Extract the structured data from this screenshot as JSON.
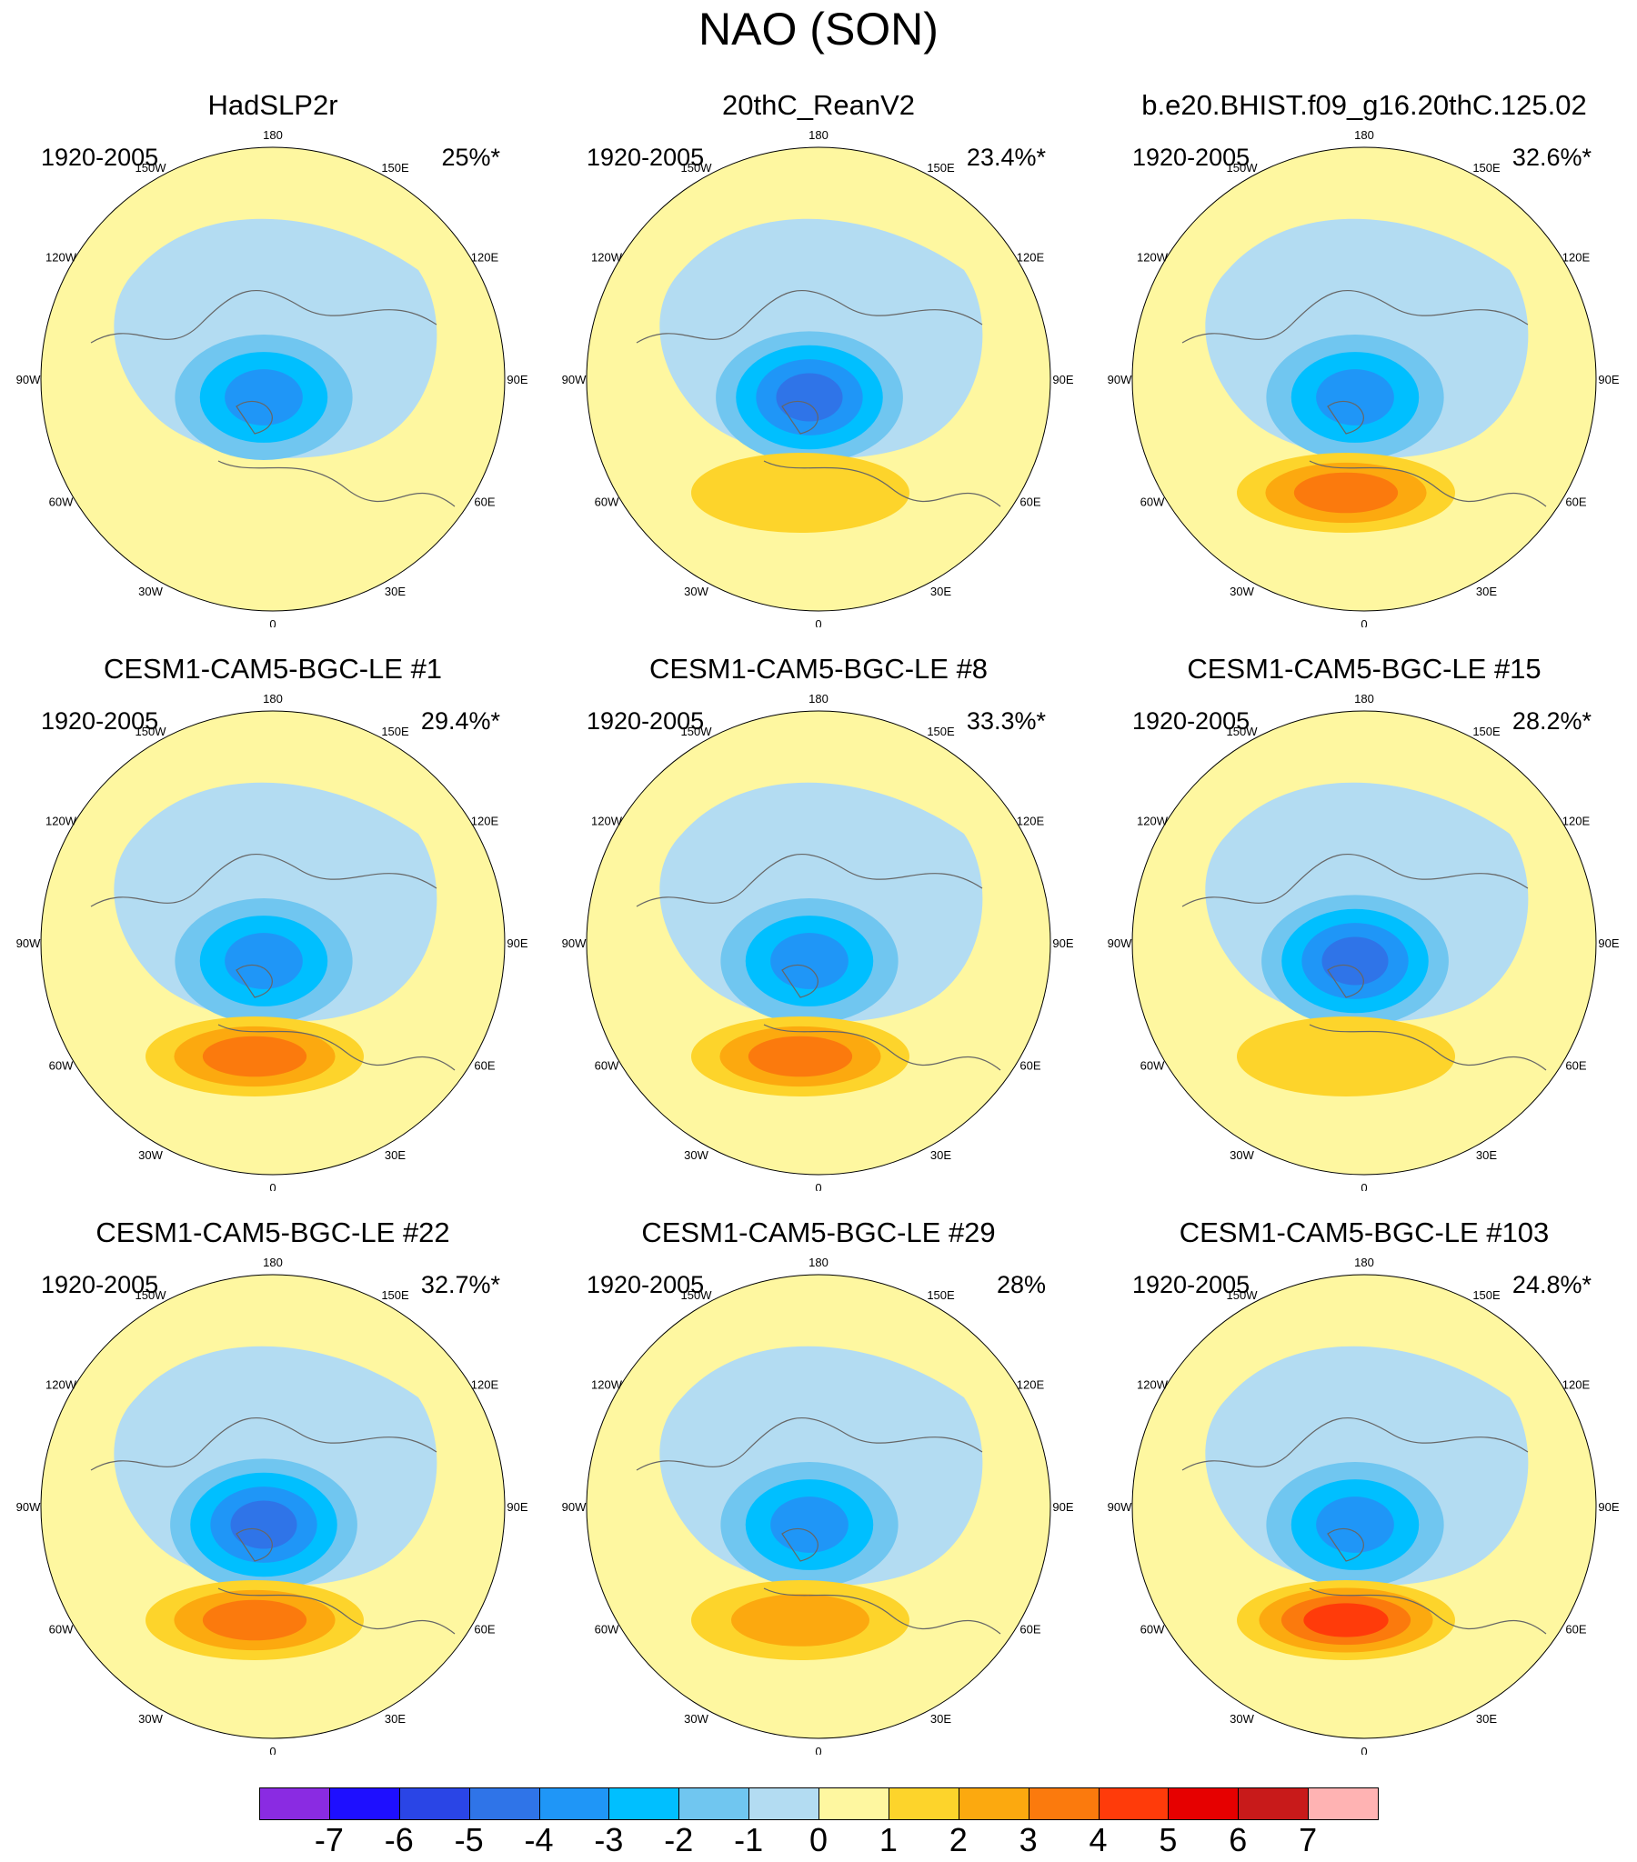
{
  "title": "NAO (SON)",
  "longitude_labels": [
    "180",
    "150E",
    "120E",
    "90E",
    "60E",
    "30E",
    "0",
    "30W",
    "60W",
    "90W",
    "120W",
    "150W"
  ],
  "panels": [
    {
      "title": "HadSLP2r",
      "years": "1920-2005",
      "percent": "25%*",
      "neg": "#b3dcf2",
      "pos": "#fef7a0",
      "center_min": -3,
      "south_max": 0
    },
    {
      "title": "20thC_ReanV2",
      "years": "1920-2005",
      "percent": "23.4%*",
      "neg": "#b3dcf2",
      "pos": "#fef7a0",
      "center_min": -4,
      "south_max": 1
    },
    {
      "title": "b.e20.BHIST.f09_g16.20thC.125.02",
      "years": "1920-2005",
      "percent": "32.6%*",
      "neg": "#b3dcf2",
      "pos": "#fef7a0",
      "center_min": -3,
      "south_max": 3
    },
    {
      "title": "CESM1-CAM5-BGC-LE #1",
      "years": "1920-2005",
      "percent": "29.4%*",
      "neg": "#b3dcf2",
      "pos": "#fef7a0",
      "center_min": -3,
      "south_max": 3
    },
    {
      "title": "CESM1-CAM5-BGC-LE #8",
      "years": "1920-2005",
      "percent": "33.3%*",
      "neg": "#b3dcf2",
      "pos": "#fef7a0",
      "center_min": -3,
      "south_max": 3
    },
    {
      "title": "CESM1-CAM5-BGC-LE #15",
      "years": "1920-2005",
      "percent": "28.2%*",
      "neg": "#b3dcf2",
      "pos": "#fef7a0",
      "center_min": -4,
      "south_max": 1
    },
    {
      "title": "CESM1-CAM5-BGC-LE #22",
      "years": "1920-2005",
      "percent": "32.7%*",
      "neg": "#b3dcf2",
      "pos": "#fef7a0",
      "center_min": -4,
      "south_max": 3
    },
    {
      "title": "CESM1-CAM5-BGC-LE #29",
      "years": "1920-2005",
      "percent": "28%",
      "neg": "#b3dcf2",
      "pos": "#fef7a0",
      "center_min": -3,
      "south_max": 2
    },
    {
      "title": "CESM1-CAM5-BGC-LE #103",
      "years": "1920-2005",
      "percent": "24.8%*",
      "neg": "#b3dcf2",
      "pos": "#fef7a0",
      "center_min": -3,
      "south_max": 4
    }
  ],
  "colorbar": {
    "colors": [
      "#8a2be2",
      "#1e0fff",
      "#2a45e6",
      "#2f74e8",
      "#1f96f7",
      "#00bfff",
      "#70c6f0",
      "#b3dcf2",
      "#fef7a0",
      "#fdd42b",
      "#fca90f",
      "#fb7a0d",
      "#ff3b0a",
      "#e60000",
      "#c81a1a",
      "#ffb3b3"
    ],
    "ticks": [
      "-7",
      "-6",
      "-5",
      "-4",
      "-3",
      "-2",
      "-1",
      "0",
      "1",
      "2",
      "3",
      "4",
      "5",
      "6",
      "7"
    ]
  }
}
